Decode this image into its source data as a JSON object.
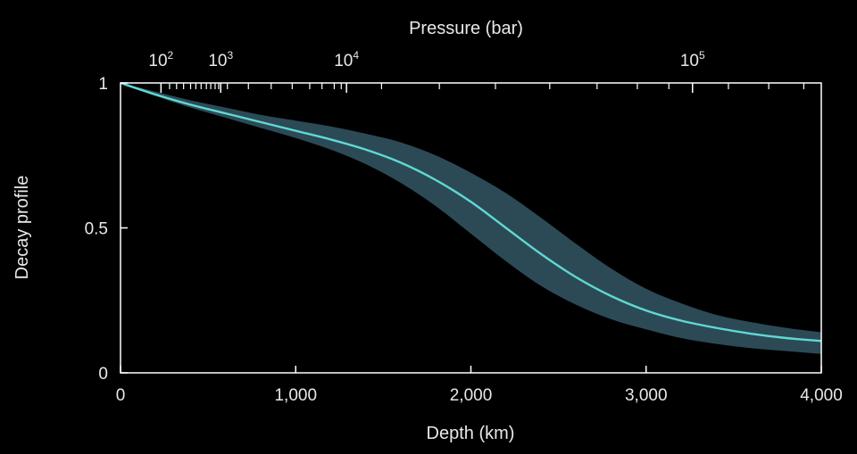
{
  "chart_data": {
    "type": "area",
    "title": "",
    "xlabel": "Depth (km)",
    "ylabel": "Decay profile",
    "top_axis_label": "Pressure (bar)",
    "xlim": [
      0,
      4000
    ],
    "ylim": [
      0,
      1
    ],
    "x_ticks": [
      {
        "value": 0,
        "label": "0"
      },
      {
        "value": 1000,
        "label": "1,000"
      },
      {
        "value": 2000,
        "label": "2,000"
      },
      {
        "value": 3000,
        "label": "3,000"
      },
      {
        "value": 4000,
        "label": "4,000"
      }
    ],
    "y_ticks": [
      {
        "value": 0,
        "label": "0"
      },
      {
        "value": 0.5,
        "label": "0.5"
      },
      {
        "value": 1,
        "label": "1"
      }
    ],
    "top_ticks": [
      {
        "depth": 231,
        "base": "10",
        "exponent": "2"
      },
      {
        "depth": 572,
        "base": "10",
        "exponent": "3"
      },
      {
        "depth": 1290,
        "base": "10",
        "exponent": "4"
      },
      {
        "depth": 3265,
        "base": "10",
        "exponent": "5"
      }
    ],
    "top_minor_tick_depths": [
      280,
      320,
      360,
      400,
      430,
      460,
      490,
      515,
      540,
      560,
      610,
      730,
      860,
      980,
      1080,
      1150,
      1220,
      1260,
      1490,
      1820,
      2140,
      2450,
      2720,
      2950,
      3130,
      3470,
      3700,
      3900
    ],
    "series": [
      {
        "kind": "line",
        "x": [
          0,
          200,
          400,
          600,
          800,
          1000,
          1200,
          1400,
          1600,
          1800,
          2000,
          2200,
          2400,
          2600,
          2800,
          3000,
          3200,
          3400,
          3600,
          3800,
          4000
        ],
        "y": [
          1.0,
          0.96,
          0.925,
          0.895,
          0.865,
          0.835,
          0.805,
          0.77,
          0.725,
          0.665,
          0.59,
          0.5,
          0.41,
          0.33,
          0.265,
          0.215,
          0.18,
          0.155,
          0.135,
          0.12,
          0.11
        ]
      },
      {
        "kind": "band",
        "x": [
          0,
          200,
          400,
          600,
          800,
          1000,
          1200,
          1400,
          1600,
          1800,
          2000,
          2200,
          2400,
          2600,
          2800,
          3000,
          3200,
          3400,
          3600,
          3800,
          4000
        ],
        "y_lower": [
          1.0,
          0.955,
          0.915,
          0.88,
          0.845,
          0.81,
          0.77,
          0.72,
          0.655,
          0.575,
          0.48,
          0.385,
          0.3,
          0.235,
          0.185,
          0.15,
          0.12,
          0.1,
          0.085,
          0.075,
          0.065
        ],
        "y_upper": [
          1.0,
          0.97,
          0.94,
          0.915,
          0.89,
          0.87,
          0.85,
          0.825,
          0.795,
          0.75,
          0.69,
          0.62,
          0.535,
          0.445,
          0.36,
          0.29,
          0.24,
          0.2,
          0.175,
          0.155,
          0.14
        ]
      }
    ],
    "colors": {
      "background": "#000000",
      "line": "#5fd9d3",
      "band": "#2c4a56",
      "axes": "#ffffff",
      "text": "#e8e8e8"
    },
    "grid": false,
    "legend": "none"
  }
}
